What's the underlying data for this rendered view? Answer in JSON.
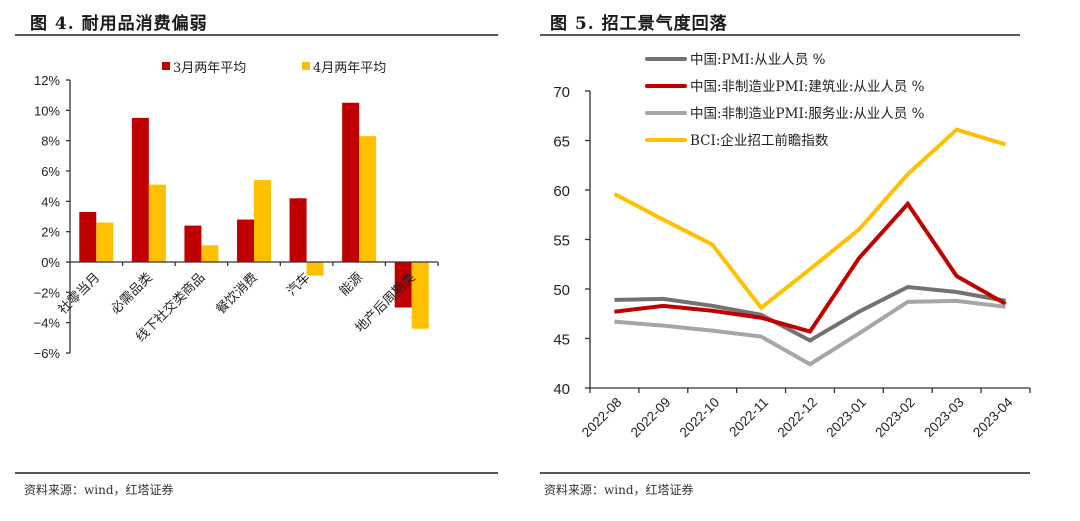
{
  "figures": [
    {
      "title": "图 4. 耐用品消费偏弱",
      "source": "资料来源：wind，红塔证券"
    },
    {
      "title": "图 5. 招工景气度回落",
      "source": "资料来源：wind，红塔证券"
    }
  ],
  "chart_data": [
    {
      "type": "bar",
      "title": "图 4. 耐用品消费偏弱",
      "xlabel": "",
      "ylabel": "",
      "categories": [
        "社零当月",
        "必需品类",
        "线下社交类商品",
        "餐饮消费",
        "汽车",
        "能源",
        "地产后周期类"
      ],
      "series": [
        {
          "name": "3月两年平均",
          "color": "#C00000",
          "values": [
            3.3,
            9.5,
            2.4,
            2.8,
            4.2,
            10.5,
            -3.0
          ]
        },
        {
          "name": "4月两年平均",
          "color": "#FFC000",
          "values": [
            2.6,
            5.1,
            1.1,
            5.4,
            -0.9,
            8.3,
            -4.4
          ]
        }
      ],
      "ylim": [
        -6,
        12
      ],
      "yticks": [
        12,
        10,
        8,
        6,
        4,
        2,
        0,
        -2,
        -4,
        -6
      ],
      "ytick_labels": [
        "12%",
        "10%",
        "8%",
        "6%",
        "4%",
        "2%",
        "0%",
        "−2%",
        "−4%",
        "−6%"
      ],
      "unit": "%",
      "grid": false,
      "legend": "top"
    },
    {
      "type": "line",
      "title": "图 5. 招工景气度回落",
      "xlabel": "",
      "ylabel": "",
      "categories": [
        "2022-08",
        "2022-09",
        "2022-10",
        "2022-11",
        "2022-12",
        "2023-01",
        "2023-02",
        "2023-03",
        "2023-04"
      ],
      "series": [
        {
          "name": "中国:PMI:从业人员 %",
          "color": "#767171",
          "values": [
            48.9,
            49.0,
            48.3,
            47.4,
            44.8,
            47.7,
            50.2,
            49.7,
            48.8
          ]
        },
        {
          "name": "中国:非制造业PMI:建筑业:从业人员 %",
          "color": "#C00000",
          "values": [
            47.7,
            48.3,
            47.8,
            47.1,
            45.7,
            53.1,
            58.6,
            51.3,
            48.5
          ]
        },
        {
          "name": "中国:非制造业PMI:服务业:从业人员 %",
          "color": "#A6A6A6",
          "values": [
            46.7,
            46.3,
            45.8,
            45.2,
            42.4,
            45.5,
            48.7,
            48.8,
            48.2
          ]
        },
        {
          "name": "BCI:企业招工前瞻指数",
          "color": "#FFC000",
          "values": [
            59.6,
            57.0,
            54.5,
            48.1,
            52.0,
            56.0,
            61.6,
            66.1,
            64.6
          ]
        }
      ],
      "ylim": [
        40,
        70
      ],
      "yticks": [
        70,
        65,
        60,
        55,
        50,
        45,
        40
      ],
      "grid": false,
      "legend": "top-left"
    }
  ]
}
